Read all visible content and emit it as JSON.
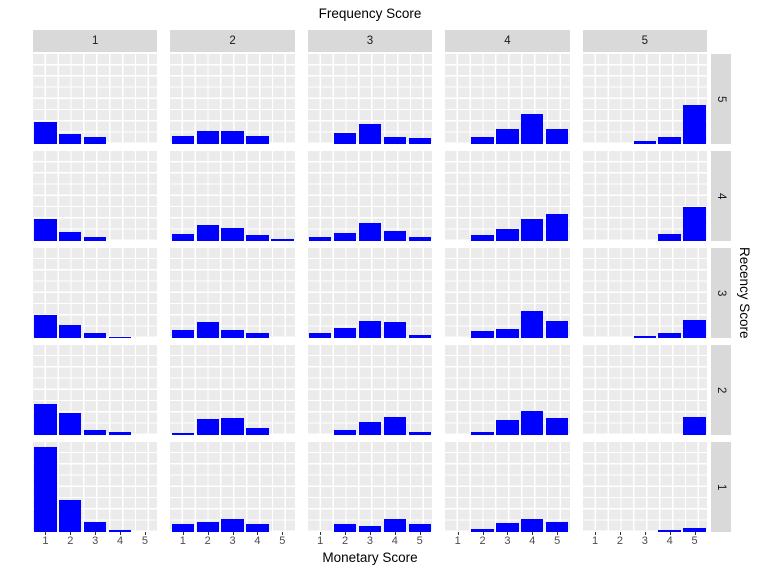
{
  "chart_data": {
    "type": "bar",
    "title": "Frequency Score",
    "xlabel": "Monetary Score",
    "ylabel": "",
    "right_label": "Recency Score",
    "bar_color": "#0000ff",
    "panel_bg": "#ebebeb",
    "strip_bg": "#d9d9d9",
    "grid_color": "#ffffff",
    "legend": "none",
    "grid": "on",
    "y_axis_ticks": "none",
    "x_categories": [
      "1",
      "2",
      "3",
      "4",
      "5"
    ],
    "col_facet": {
      "variable": "Frequency Score",
      "levels": [
        "1",
        "2",
        "3",
        "4",
        "5"
      ]
    },
    "row_facet": {
      "variable": "Recency Score",
      "levels": [
        "5",
        "4",
        "3",
        "2",
        "1"
      ]
    },
    "values_unit": "relative frequency (fraction of panel height)",
    "facets": [
      {
        "row": "5",
        "col": "1",
        "values": [
          0.24,
          0.11,
          0.08,
          0,
          0
        ]
      },
      {
        "row": "5",
        "col": "2",
        "values": [
          0.09,
          0.15,
          0.14,
          0.09,
          0
        ]
      },
      {
        "row": "5",
        "col": "3",
        "values": [
          0,
          0.12,
          0.22,
          0.08,
          0.07
        ]
      },
      {
        "row": "5",
        "col": "4",
        "values": [
          0,
          0.08,
          0.17,
          0.33,
          0.17
        ]
      },
      {
        "row": "5",
        "col": "5",
        "values": [
          0,
          0,
          0.03,
          0.08,
          0.43
        ]
      },
      {
        "row": "4",
        "col": "1",
        "values": [
          0.25,
          0.1,
          0.05,
          0,
          0
        ]
      },
      {
        "row": "4",
        "col": "2",
        "values": [
          0.08,
          0.18,
          0.15,
          0.07,
          0.02
        ]
      },
      {
        "row": "4",
        "col": "3",
        "values": [
          0.05,
          0.09,
          0.2,
          0.11,
          0.05
        ]
      },
      {
        "row": "4",
        "col": "4",
        "values": [
          0,
          0.07,
          0.13,
          0.25,
          0.3
        ]
      },
      {
        "row": "4",
        "col": "5",
        "values": [
          0,
          0,
          0,
          0.08,
          0.38
        ]
      },
      {
        "row": "3",
        "col": "1",
        "values": [
          0.26,
          0.14,
          0.06,
          0.01,
          0
        ]
      },
      {
        "row": "3",
        "col": "2",
        "values": [
          0.09,
          0.18,
          0.09,
          0.06,
          0
        ]
      },
      {
        "row": "3",
        "col": "3",
        "values": [
          0.06,
          0.11,
          0.19,
          0.18,
          0.03
        ]
      },
      {
        "row": "3",
        "col": "4",
        "values": [
          0,
          0.08,
          0.1,
          0.3,
          0.19
        ]
      },
      {
        "row": "3",
        "col": "5",
        "values": [
          0,
          0,
          0.02,
          0.06,
          0.2
        ]
      },
      {
        "row": "2",
        "col": "1",
        "values": [
          0.34,
          0.25,
          0.06,
          0.03,
          0
        ]
      },
      {
        "row": "2",
        "col": "2",
        "values": [
          0.02,
          0.18,
          0.19,
          0.08,
          0
        ]
      },
      {
        "row": "2",
        "col": "3",
        "values": [
          0,
          0.06,
          0.15,
          0.2,
          0.03
        ]
      },
      {
        "row": "2",
        "col": "4",
        "values": [
          0,
          0.03,
          0.17,
          0.27,
          0.19
        ]
      },
      {
        "row": "2",
        "col": "5",
        "values": [
          0,
          0,
          0,
          0,
          0.2
        ]
      },
      {
        "row": "1",
        "col": "1",
        "values": [
          0.94,
          0.36,
          0.11,
          0.02,
          0
        ]
      },
      {
        "row": "1",
        "col": "2",
        "values": [
          0.09,
          0.11,
          0.15,
          0.09,
          0
        ]
      },
      {
        "row": "1",
        "col": "3",
        "values": [
          0,
          0.09,
          0.07,
          0.15,
          0.09
        ]
      },
      {
        "row": "1",
        "col": "4",
        "values": [
          0,
          0.03,
          0.1,
          0.15,
          0.11
        ]
      },
      {
        "row": "1",
        "col": "5",
        "values": [
          0,
          0,
          0,
          0.02,
          0.05
        ]
      }
    ]
  }
}
